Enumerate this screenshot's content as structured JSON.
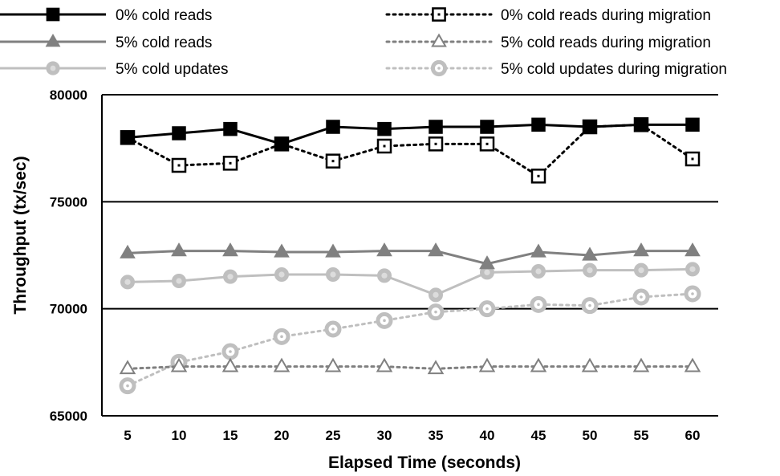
{
  "chart_data": {
    "type": "line",
    "xlabel": "Elapsed Time (seconds)",
    "ylabel": "Throughput (tx/sec)",
    "x": [
      5,
      10,
      15,
      20,
      25,
      30,
      35,
      40,
      45,
      50,
      55,
      60
    ],
    "ylim": [
      65000,
      80000
    ],
    "yticks": [
      65000,
      70000,
      75000,
      80000
    ],
    "grid": "horizontal",
    "legend_position": "top",
    "series": [
      {
        "name": "0% cold reads",
        "marker": "square",
        "filled": true,
        "dash": "solid",
        "color": "#000000",
        "values": [
          78000,
          78200,
          78400,
          77700,
          78500,
          78400,
          78500,
          78500,
          78600,
          78500,
          78600,
          78600
        ]
      },
      {
        "name": "0% cold reads during migration",
        "marker": "square",
        "filled": false,
        "dash": "dotted",
        "color": "#000000",
        "values": [
          78000,
          76700,
          76800,
          77700,
          76900,
          77600,
          77700,
          77700,
          76200,
          78500,
          78600,
          77000
        ]
      },
      {
        "name": "5% cold reads",
        "marker": "triangle",
        "filled": true,
        "dash": "solid",
        "color": "#808080",
        "values": [
          72600,
          72700,
          72700,
          72650,
          72650,
          72700,
          72700,
          72100,
          72650,
          72500,
          72700,
          72700
        ]
      },
      {
        "name": "5% cold reads during migration",
        "marker": "triangle",
        "filled": false,
        "dash": "dotted",
        "color": "#808080",
        "values": [
          67200,
          67300,
          67300,
          67300,
          67300,
          67300,
          67200,
          67300,
          67300,
          67300,
          67300,
          67300
        ]
      },
      {
        "name": "5% cold updates",
        "marker": "circle",
        "filled": true,
        "dash": "solid",
        "color": "#bfbfbf",
        "values": [
          71250,
          71300,
          71500,
          71600,
          71600,
          71550,
          70650,
          71700,
          71750,
          71800,
          71800,
          71850
        ]
      },
      {
        "name": "5% cold updates during migration",
        "marker": "circle",
        "filled": false,
        "dash": "dotted",
        "color": "#bfbfbf",
        "values": [
          66400,
          67500,
          68000,
          68700,
          69050,
          69450,
          69850,
          70000,
          70200,
          70150,
          70550,
          70700
        ]
      }
    ]
  }
}
